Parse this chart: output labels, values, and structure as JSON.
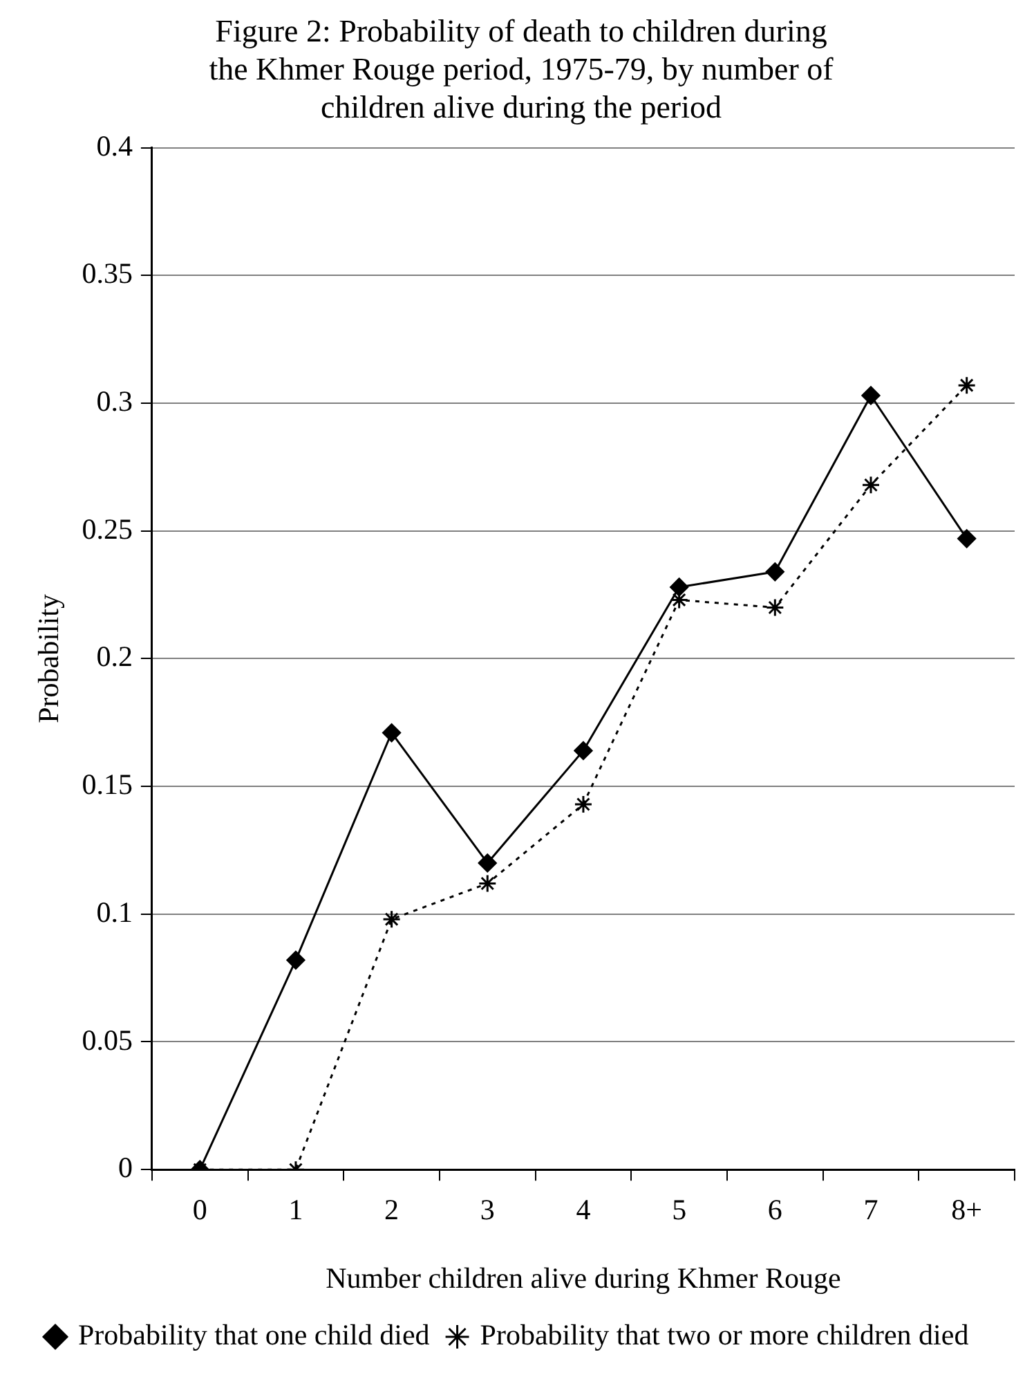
{
  "chart_data": {
    "type": "line",
    "title": "Figure 2: Probability of death to children during the Khmer Rouge period, 1975-79, by number of children alive during the period",
    "xlabel": "Number children alive during Khmer Rouge",
    "ylabel": "Probability",
    "categories": [
      "0",
      "1",
      "2",
      "3",
      "4",
      "5",
      "6",
      "7",
      "8+"
    ],
    "series": [
      {
        "name": "Probability that one child died",
        "color": "#000000",
        "marker": "diamond",
        "line_style": "solid",
        "values": [
          0,
          0.082,
          0.171,
          0.12,
          0.164,
          0.228,
          0.234,
          0.303,
          0.247
        ]
      },
      {
        "name": "Probability that two or more children died",
        "color": "#000000",
        "marker": "cross",
        "line_style": "dashed",
        "values": [
          0,
          0,
          0.098,
          0.112,
          0.143,
          0.223,
          0.22,
          0.268,
          0.307
        ]
      }
    ],
    "ylim": [
      0,
      0.4
    ],
    "yticks": [
      0,
      0.05,
      0.1,
      0.15,
      0.2,
      0.25,
      0.3,
      0.35,
      0.4
    ],
    "grid": "y",
    "legend": "bottom"
  }
}
